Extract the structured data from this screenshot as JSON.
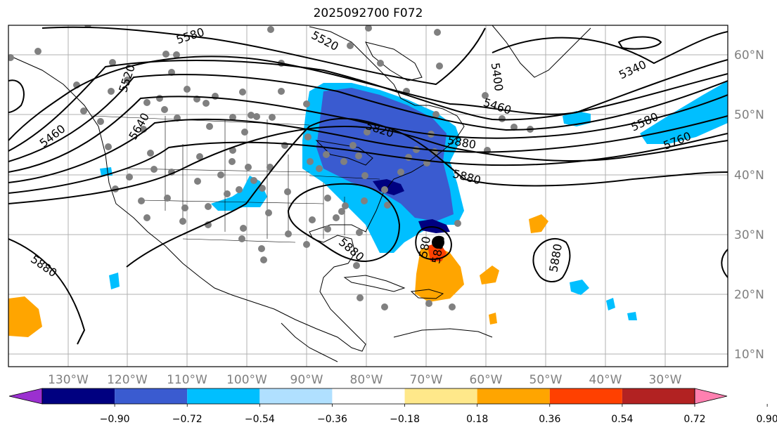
{
  "title": "2025092700 F072",
  "axes": {
    "lon_ticks": [
      "130°W",
      "120°W",
      "110°W",
      "100°W",
      "90°W",
      "80°W",
      "70°W",
      "60°W",
      "50°W",
      "40°W",
      "30°W"
    ],
    "lat_ticks": [
      "60°N",
      "50°N",
      "40°N",
      "30°N",
      "20°N",
      "10°N"
    ]
  },
  "contour_labels": [
    "5520",
    "5400",
    "5460",
    "5340",
    "5580",
    "5760",
    "5820",
    "5880",
    "5880",
    "5880",
    "5880",
    "5460",
    "5520",
    "5640",
    "5580",
    "5880",
    "580",
    "5880"
  ],
  "colorbar": {
    "tick_labels": [
      "−0.90",
      "−0.72",
      "−0.54",
      "−0.36",
      "−0.18",
      "0.18",
      "0.36",
      "0.54",
      "0.72",
      "0.90"
    ],
    "colors": [
      "#9b30d0",
      "#000080",
      "#3a5bd0",
      "#00bfff",
      "#b0e0ff",
      "#ffffff",
      "#ffe88a",
      "#ffa500",
      "#ff4000",
      "#b22222",
      "#ff80b0"
    ]
  },
  "shading_colors": {
    "deep_blue": "#000080",
    "mid_blue": "#3a5bd0",
    "sky_blue": "#00bfff",
    "orange": "#ffa500",
    "red_orange": "#ff4000"
  },
  "marker_color": "#808080",
  "center_marker_color": "#000000"
}
